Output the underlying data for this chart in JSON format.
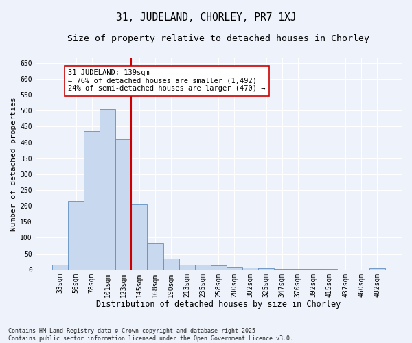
{
  "title_line1": "31, JUDELAND, CHORLEY, PR7 1XJ",
  "title_line2": "Size of property relative to detached houses in Chorley",
  "xlabel": "Distribution of detached houses by size in Chorley",
  "ylabel": "Number of detached properties",
  "categories": [
    "33sqm",
    "56sqm",
    "78sqm",
    "101sqm",
    "123sqm",
    "145sqm",
    "168sqm",
    "190sqm",
    "213sqm",
    "235sqm",
    "258sqm",
    "280sqm",
    "302sqm",
    "325sqm",
    "347sqm",
    "370sqm",
    "392sqm",
    "415sqm",
    "437sqm",
    "460sqm",
    "482sqm"
  ],
  "values": [
    15,
    215,
    435,
    505,
    410,
    205,
    83,
    35,
    15,
    15,
    12,
    7,
    5,
    3,
    2,
    1,
    1,
    1,
    0,
    0,
    3
  ],
  "bar_color": "#c8d8ee",
  "bar_edge_color": "#6090c0",
  "vline_color": "#cc0000",
  "vline_x_index": 4,
  "annotation_text": "31 JUDELAND: 139sqm\n← 76% of detached houses are smaller (1,492)\n24% of semi-detached houses are larger (470) →",
  "annotation_box_facecolor": "#ffffff",
  "annotation_box_edgecolor": "#cc0000",
  "ylim": [
    0,
    665
  ],
  "yticks": [
    0,
    50,
    100,
    150,
    200,
    250,
    300,
    350,
    400,
    450,
    500,
    550,
    600,
    650
  ],
  "background_color": "#eef2fb",
  "grid_color": "#ffffff",
  "footer_text": "Contains HM Land Registry data © Crown copyright and database right 2025.\nContains public sector information licensed under the Open Government Licence v3.0.",
  "title_fontsize": 10.5,
  "subtitle_fontsize": 9.5,
  "xlabel_fontsize": 8.5,
  "ylabel_fontsize": 8,
  "tick_fontsize": 7,
  "annotation_fontsize": 7.5,
  "footer_fontsize": 6
}
